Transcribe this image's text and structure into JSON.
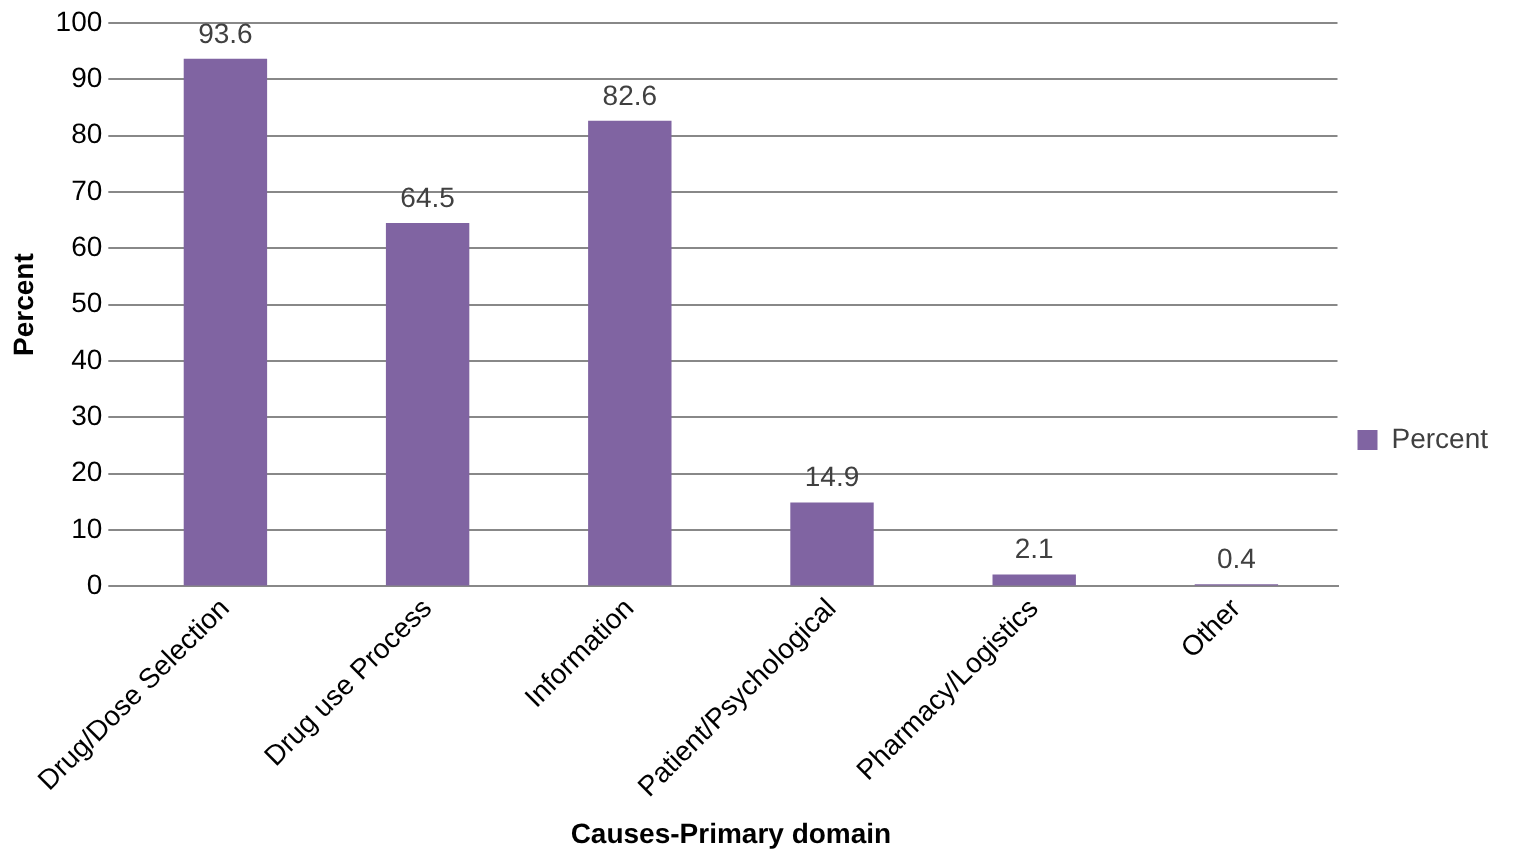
{
  "chart_data": {
    "type": "bar",
    "xlabel": "Causes-Primary domain",
    "ylabel": "Percent",
    "categories": [
      "Drug/Dose Selection",
      "Drug use Process",
      "Information",
      "Patient/Psychological",
      "Pharmacy/Logistics",
      "Other"
    ],
    "series": [
      {
        "name": "Percent",
        "color": "#8064a2",
        "values": [
          93.6,
          64.5,
          82.6,
          14.9,
          2.1,
          0.4
        ]
      }
    ],
    "ylim": [
      0,
      100
    ],
    "yticks": [
      0,
      10,
      20,
      30,
      40,
      50,
      60,
      70,
      80,
      90,
      100
    ],
    "grid": "y",
    "legend": "right",
    "data_labels": true
  }
}
